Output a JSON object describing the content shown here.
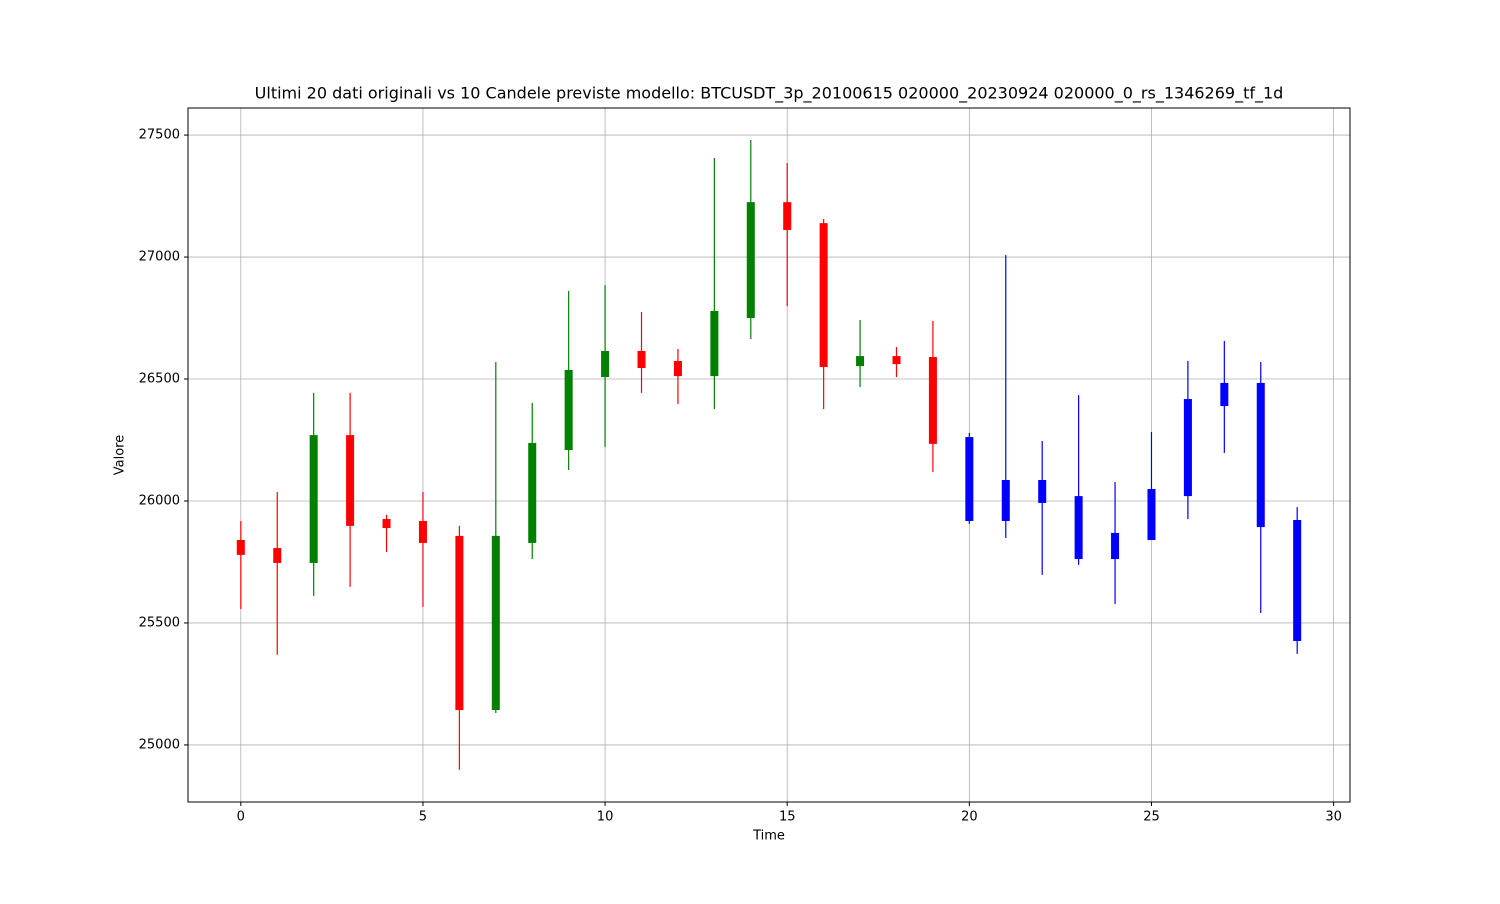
{
  "chart_data": {
    "type": "candlestick",
    "title": "Ultimi 20 dati originali vs 10 Candele previste modello: BTCUSDT_3p_20100615 020000_20230924 020000_0_rs_1346269_tf_1d",
    "xlabel": "Time",
    "ylabel": "Valore",
    "xlim": [
      -1.45,
      30.45
    ],
    "ylim": [
      24766,
      27611
    ],
    "xticks": [
      0,
      5,
      10,
      15,
      20,
      25,
      30
    ],
    "yticks": [
      25000,
      25500,
      26000,
      26500,
      27000,
      27500
    ],
    "grid": true,
    "up_color": "green",
    "down_color": "red",
    "original": {
      "x": [
        0,
        1,
        2,
        3,
        4,
        5,
        6,
        7,
        8,
        9,
        10,
        11,
        12,
        13,
        14,
        15,
        16,
        17,
        18,
        19
      ],
      "open": [
        25840,
        25807,
        25746,
        26270,
        25926,
        25918,
        25857,
        25143,
        25828,
        26209,
        26508,
        26615,
        26574,
        26512,
        26750,
        27225,
        27139,
        26553,
        26594,
        26590
      ],
      "high": [
        25918,
        26037,
        26443,
        26443,
        25943,
        26037,
        25898,
        26570,
        26402,
        26861,
        26885,
        26775,
        26623,
        27406,
        27480,
        27385,
        27156,
        26742,
        26631,
        26738
      ],
      "low": [
        25557,
        25369,
        25611,
        25648,
        25791,
        25566,
        24898,
        25131,
        25762,
        26127,
        26221,
        26443,
        26398,
        26377,
        26664,
        26799,
        26377,
        26467,
        26508,
        26119
      ],
      "close": [
        25779,
        25746,
        26270,
        25898,
        25889,
        25828,
        25143,
        25857,
        26238,
        26537,
        26615,
        26545,
        26512,
        26779,
        27225,
        27111,
        26549,
        26594,
        26561,
        26234
      ]
    },
    "forecast": {
      "color": "blue",
      "x": [
        20,
        21,
        22,
        23,
        24,
        25,
        26,
        27,
        28,
        29
      ],
      "open": [
        26262,
        26086,
        26086,
        26020,
        25869,
        26049,
        26418,
        26484,
        26484,
        25922
      ],
      "high": [
        26279,
        27008,
        26246,
        26434,
        26078,
        26283,
        26574,
        26656,
        26570,
        25975
      ],
      "low": [
        25906,
        25848,
        25697,
        25738,
        25578,
        25840,
        25926,
        26197,
        25541,
        25373
      ],
      "close": [
        25918,
        25918,
        25992,
        25762,
        25762,
        25840,
        26020,
        26389,
        25893,
        25426
      ]
    }
  }
}
